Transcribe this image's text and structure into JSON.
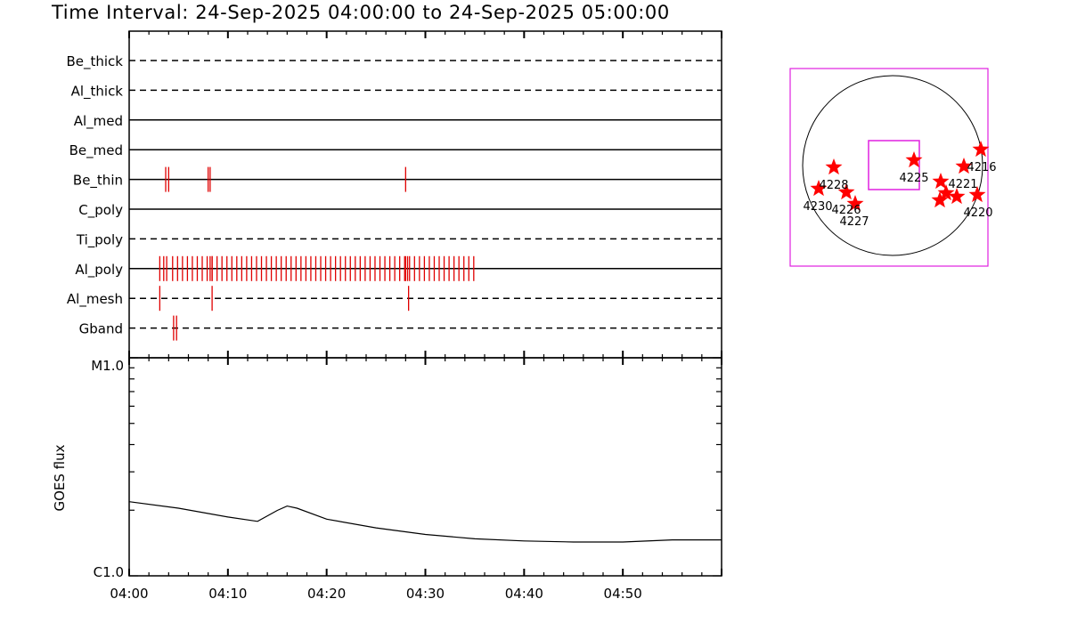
{
  "title": "Time Interval: 24-Sep-2025 04:00:00 to 24-Sep-2025 05:00:00",
  "colors": {
    "axes": "#000000",
    "events": "#e00000",
    "fov": "#e020e0",
    "stars": "#ff0000"
  },
  "chart_data": [
    {
      "type": "event-timeline",
      "x": [
        "04:00",
        "04:10",
        "04:20",
        "04:30",
        "04:40",
        "04:50"
      ],
      "xlim": [
        "04:00",
        "05:00"
      ],
      "rows": [
        {
          "label": "Be_thick",
          "line": "dashed",
          "events": []
        },
        {
          "label": "Al_thick",
          "line": "dashed",
          "events": []
        },
        {
          "label": "Al_med",
          "line": "solid",
          "events": []
        },
        {
          "label": "Be_med",
          "line": "solid",
          "events": []
        },
        {
          "label": "Be_thin",
          "line": "solid",
          "events": [
            "04:03.7",
            "04:04.0",
            "04:08.0",
            "04:08.2",
            "04:28.0"
          ]
        },
        {
          "label": "C_poly",
          "line": "solid",
          "events": []
        },
        {
          "label": "Ti_poly",
          "line": "dashed",
          "events": []
        },
        {
          "label": "Al_poly",
          "line": "solid",
          "events": [
            "04:03.1",
            "04:03.5",
            "04:03.8",
            "04:08.2",
            "04:08.4",
            "04:28.0",
            "04:28.2"
          ],
          "series": {
            "from": "04:04.4",
            "to": "04:35.0",
            "step_min": 0.5
          }
        },
        {
          "label": "Al_mesh",
          "line": "dashed",
          "events": [
            "04:03.1",
            "04:08.4",
            "04:28.3"
          ]
        },
        {
          "label": "Gband",
          "line": "dashed",
          "events": [
            "04:04.5",
            "04:04.8"
          ]
        }
      ]
    },
    {
      "type": "line",
      "ylabel": "GOES flux",
      "y_ticks": [
        "M1.0",
        "C1.0"
      ],
      "ylim": [
        0,
        1
      ],
      "x": [
        "04:00",
        "04:05",
        "04:10",
        "04:13",
        "04:15",
        "04:16",
        "04:17",
        "04:20",
        "04:25",
        "04:30",
        "04:35",
        "04:40",
        "04:45",
        "04:50",
        "04:55",
        "05:00"
      ],
      "values": [
        0.34,
        0.31,
        0.27,
        0.25,
        0.3,
        0.32,
        0.31,
        0.26,
        0.22,
        0.19,
        0.17,
        0.16,
        0.155,
        0.155,
        0.165,
        0.165
      ]
    },
    {
      "type": "solar-map",
      "regions": [
        {
          "label": "4216"
        },
        {
          "label": "4220"
        },
        {
          "label": "4221"
        },
        {
          "label": "4225"
        },
        {
          "label": "4228"
        },
        {
          "label": "4226"
        },
        {
          "label": "4227"
        },
        {
          "label": "4230"
        }
      ]
    }
  ]
}
